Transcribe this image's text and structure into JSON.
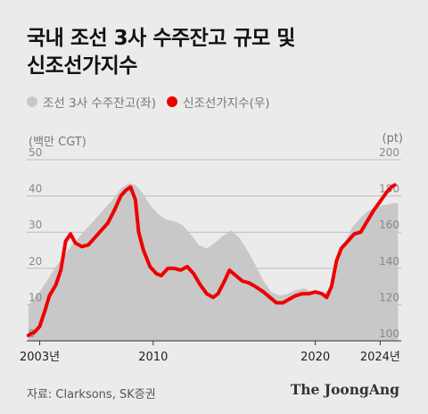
{
  "title_lines": [
    "국내 조선 3사 수주잔고 규모 및",
    "신조선가지수"
  ],
  "legend": [
    {
      "label": "조선 3사 수주잔고(좌)",
      "color": "#c8c8c8"
    },
    {
      "label": "신조선가지수(우)",
      "color": "#ee0000"
    }
  ],
  "units": {
    "left": "(백만 CGT)",
    "right": "(pt)"
  },
  "source": "자료: Clarksons, SK증권",
  "brand": "The JoongAng",
  "chart_data": {
    "type": "area+line",
    "x_tick_labels": [
      {
        "x": 2003,
        "label": "2003년"
      },
      {
        "x": 2010,
        "label": "2010"
      },
      {
        "x": 2020,
        "label": "2020"
      },
      {
        "x": 2024,
        "label": "2024년"
      }
    ],
    "xlim": [
      2002.2,
      2025.3
    ],
    "left_axis": {
      "ylim": [
        0,
        50
      ],
      "ticks": [
        0,
        10,
        20,
        30,
        40,
        50
      ]
    },
    "right_axis": {
      "ylim": [
        100,
        200
      ],
      "ticks": [
        100,
        120,
        140,
        160,
        180,
        200
      ]
    },
    "series": [
      {
        "name": "조선 3사 수주잔고(좌)",
        "axis": "left",
        "color": "#c8c8c8",
        "kind": "area",
        "points": [
          [
            2002.3,
            9.5
          ],
          [
            2002.6,
            11.5
          ],
          [
            2003.0,
            13.5
          ],
          [
            2003.5,
            17
          ],
          [
            2004.0,
            20.5
          ],
          [
            2004.5,
            23.5
          ],
          [
            2005.0,
            26.5
          ],
          [
            2005.5,
            29
          ],
          [
            2006.0,
            31.5
          ],
          [
            2006.5,
            34
          ],
          [
            2007.0,
            36.5
          ],
          [
            2007.5,
            39
          ],
          [
            2008.0,
            42
          ],
          [
            2008.5,
            43.5
          ],
          [
            2008.9,
            43
          ],
          [
            2009.3,
            41
          ],
          [
            2009.8,
            37.5
          ],
          [
            2010.3,
            35
          ],
          [
            2010.8,
            33.5
          ],
          [
            2011.3,
            33
          ],
          [
            2011.8,
            32
          ],
          [
            2012.3,
            29.5
          ],
          [
            2012.8,
            26.5
          ],
          [
            2013.3,
            25.5
          ],
          [
            2013.8,
            27
          ],
          [
            2014.3,
            29
          ],
          [
            2014.8,
            30.5
          ],
          [
            2015.3,
            28.5
          ],
          [
            2015.8,
            25
          ],
          [
            2016.3,
            21
          ],
          [
            2016.8,
            16.5
          ],
          [
            2017.3,
            13.5
          ],
          [
            2017.8,
            12.5
          ],
          [
            2018.3,
            13
          ],
          [
            2018.8,
            14
          ],
          [
            2019.3,
            14.5
          ],
          [
            2019.8,
            13.5
          ],
          [
            2020.3,
            12.5
          ],
          [
            2020.8,
            14
          ],
          [
            2021.3,
            20
          ],
          [
            2021.8,
            27
          ],
          [
            2022.3,
            31.5
          ],
          [
            2022.8,
            34
          ],
          [
            2023.3,
            36
          ],
          [
            2023.8,
            37
          ],
          [
            2024.3,
            37.5
          ],
          [
            2024.8,
            38
          ],
          [
            2025.1,
            38
          ]
        ]
      },
      {
        "name": "신조선가지수(우)",
        "axis": "right",
        "color": "#ee0000",
        "kind": "line",
        "points": [
          [
            2002.3,
            103
          ],
          [
            2002.7,
            105
          ],
          [
            2003.0,
            108
          ],
          [
            2003.3,
            116
          ],
          [
            2003.6,
            125
          ],
          [
            2004.0,
            131
          ],
          [
            2004.3,
            139
          ],
          [
            2004.6,
            155
          ],
          [
            2004.9,
            159
          ],
          [
            2005.2,
            154
          ],
          [
            2005.6,
            152
          ],
          [
            2006.0,
            153
          ],
          [
            2006.4,
            157
          ],
          [
            2006.8,
            161
          ],
          [
            2007.2,
            165
          ],
          [
            2007.6,
            172
          ],
          [
            2008.0,
            180
          ],
          [
            2008.3,
            183
          ],
          [
            2008.6,
            185
          ],
          [
            2008.9,
            178
          ],
          [
            2009.1,
            160
          ],
          [
            2009.4,
            150
          ],
          [
            2009.8,
            141
          ],
          [
            2010.2,
            137
          ],
          [
            2010.5,
            136
          ],
          [
            2010.9,
            140
          ],
          [
            2011.3,
            140
          ],
          [
            2011.7,
            139
          ],
          [
            2012.1,
            141
          ],
          [
            2012.5,
            137
          ],
          [
            2012.9,
            131
          ],
          [
            2013.3,
            126
          ],
          [
            2013.7,
            124
          ],
          [
            2014.0,
            126
          ],
          [
            2014.4,
            133
          ],
          [
            2014.7,
            139
          ],
          [
            2015.1,
            136
          ],
          [
            2015.5,
            133
          ],
          [
            2015.9,
            132
          ],
          [
            2016.3,
            130
          ],
          [
            2016.8,
            127
          ],
          [
            2017.2,
            124
          ],
          [
            2017.6,
            121
          ],
          [
            2018.0,
            121
          ],
          [
            2018.4,
            123
          ],
          [
            2018.8,
            125
          ],
          [
            2019.2,
            126
          ],
          [
            2019.6,
            126
          ],
          [
            2020.0,
            127
          ],
          [
            2020.4,
            126
          ],
          [
            2020.7,
            124
          ],
          [
            2021.0,
            130
          ],
          [
            2021.3,
            144
          ],
          [
            2021.6,
            151
          ],
          [
            2022.0,
            155
          ],
          [
            2022.4,
            159
          ],
          [
            2022.8,
            160
          ],
          [
            2023.2,
            166
          ],
          [
            2023.6,
            172
          ],
          [
            2024.0,
            177
          ],
          [
            2024.4,
            182
          ],
          [
            2024.7,
            185
          ],
          [
            2024.9,
            186
          ]
        ]
      }
    ]
  }
}
